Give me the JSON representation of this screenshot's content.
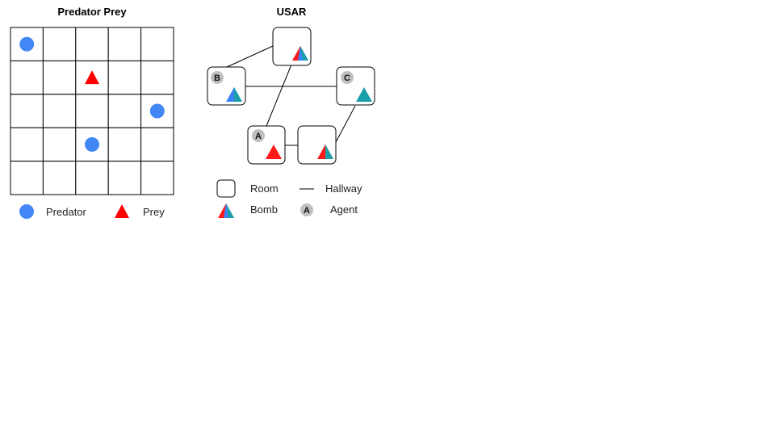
{
  "predator_prey": {
    "title": "Predator Prey",
    "grid": {
      "rows": 5,
      "cols": 5
    },
    "shaded_cells": [
      [
        0,
        0
      ],
      [
        2,
        4
      ],
      [
        3,
        2
      ]
    ],
    "predators": [
      [
        0,
        0
      ],
      [
        2,
        4
      ],
      [
        3,
        2
      ]
    ],
    "prey": [
      [
        1,
        2
      ]
    ],
    "legend": {
      "predator_label": "Predator",
      "prey_label": "Prey"
    }
  },
  "usar": {
    "title": "USAR",
    "rooms": [
      {
        "id": "top",
        "agent": "",
        "bomb": "tricolor"
      },
      {
        "id": "B",
        "agent": "B",
        "bomb": "blue-teal"
      },
      {
        "id": "C",
        "agent": "C",
        "bomb": "teal"
      },
      {
        "id": "A",
        "agent": "A",
        "bomb": "red"
      },
      {
        "id": "D",
        "agent": "",
        "bomb": "red-teal"
      }
    ],
    "hallways": [
      [
        "B",
        "top"
      ],
      [
        "top",
        "A"
      ],
      [
        "B",
        "C"
      ],
      [
        "C",
        "D"
      ],
      [
        "A",
        "D"
      ]
    ],
    "legend": {
      "room_label": "Room",
      "hallway_label": "Hallway",
      "bomb_label": "Bomb",
      "agent_label": "Agent",
      "agent_symbol": "A"
    }
  },
  "colors": {
    "predator": "#4287f5",
    "prey": "#ff0000",
    "shaded": "#bdbdbd",
    "bomb_red": "#ff1a1a",
    "bomb_blue": "#3b82f6",
    "bomb_teal": "#1a9fa8",
    "agent_badge": "#bfbfbf"
  }
}
